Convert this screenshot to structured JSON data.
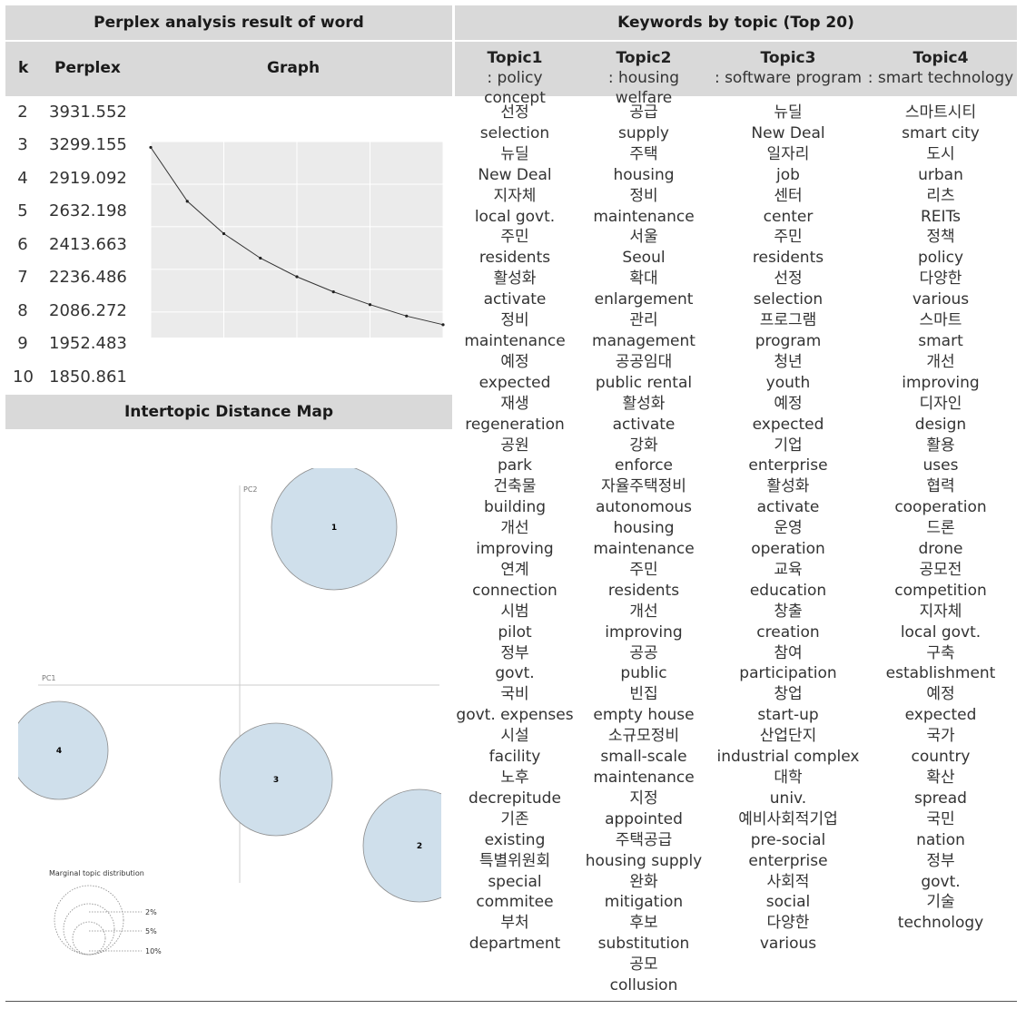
{
  "headers": {
    "perplex_title": "Perplex analysis result of word",
    "keywords_title": "Keywords by topic (Top 20)",
    "col_k": "k",
    "col_perplex": "Perplex",
    "col_graph": "Graph",
    "map_title": "Intertopic Distance Map"
  },
  "topics": [
    {
      "title": "Topic1",
      "subtitle": ": policy concept"
    },
    {
      "title": "Topic2",
      "subtitle": ": housing welfare"
    },
    {
      "title": "Topic3",
      "subtitle": ": software program"
    },
    {
      "title": "Topic4",
      "subtitle": ": smart technology"
    }
  ],
  "perplex_rows": [
    {
      "k": "2",
      "perplex": "3931.552"
    },
    {
      "k": "3",
      "perplex": "3299.155"
    },
    {
      "k": "4",
      "perplex": "2919.092"
    },
    {
      "k": "5",
      "perplex": "2632.198"
    },
    {
      "k": "6",
      "perplex": "2413.663"
    },
    {
      "k": "7",
      "perplex": "2236.486"
    },
    {
      "k": "8",
      "perplex": "2086.272"
    },
    {
      "k": "9",
      "perplex": "1952.483"
    },
    {
      "k": "10",
      "perplex": "1850.861"
    }
  ],
  "chart_data": {
    "type": "line",
    "x": [
      2,
      3,
      4,
      5,
      6,
      7,
      8,
      9,
      10
    ],
    "y": [
      3931.552,
      3299.155,
      2919.092,
      2632.198,
      2413.663,
      2236.486,
      2086.272,
      1952.483,
      1850.861
    ],
    "xlim": [
      2,
      10
    ],
    "ylim": [
      1700,
      4000
    ],
    "grid": true,
    "title": "",
    "xlabel": "",
    "ylabel": ""
  },
  "intertopic_map": {
    "axis_x_label": "PC1",
    "axis_y_label": "PC2",
    "circles": [
      {
        "label": "1"
      },
      {
        "label": "2"
      },
      {
        "label": "3"
      },
      {
        "label": "4"
      }
    ],
    "legend_title": "Marginal topic distribution",
    "legend_items": [
      "2%",
      "5%",
      "10%"
    ],
    "circle_color": "#cfdfeb"
  },
  "keywords": [
    [
      "선정",
      "selection",
      "뉴딜",
      "New Deal",
      "지자체",
      "local govt.",
      "주민",
      "residents",
      "활성화",
      "activate",
      "정비",
      "maintenance",
      "예정",
      "expected",
      "재생",
      "regeneration",
      "공원",
      "park",
      "건축물",
      "building",
      "개선",
      "improving",
      "연계",
      "connection",
      "시범",
      "pilot",
      "정부",
      "govt.",
      "국비",
      "govt. expenses",
      "시설",
      "facility",
      "노후",
      "decrepitude",
      "기존",
      "existing",
      "특별위원회",
      "special",
      "commitee",
      "부처",
      "department"
    ],
    [
      "공급",
      "supply",
      "주택",
      "housing",
      "정비",
      "maintenance",
      "서울",
      "Seoul",
      "확대",
      "enlargement",
      "관리",
      "management",
      "공공임대",
      "public rental",
      "활성화",
      "activate",
      "강화",
      "enforce",
      "자율주택정비",
      "autonomous",
      "housing",
      "maintenance",
      "주민",
      "residents",
      "개선",
      "improving",
      "공공",
      "public",
      "빈집",
      "empty house",
      "소규모정비",
      "small-scale",
      "maintenance",
      "지정",
      "appointed",
      "주택공급",
      "housing supply",
      "완화",
      "mitigation",
      "후보",
      "substitution",
      "공모",
      "collusion"
    ],
    [
      "뉴딜",
      "New Deal",
      "일자리",
      "job",
      "센터",
      "center",
      "주민",
      "residents",
      "선정",
      "selection",
      "프로그램",
      "program",
      "청년",
      "youth",
      "예정",
      "expected",
      "기업",
      "enterprise",
      "활성화",
      "activate",
      "운영",
      "operation",
      "교육",
      "education",
      "창출",
      "creation",
      "참여",
      "participation",
      "창업",
      "start-up",
      "산업단지",
      "industrial complex",
      "대학",
      "univ.",
      "예비사회적기업",
      "pre-social",
      "enterprise",
      "사회적",
      "social",
      "다양한",
      "various"
    ],
    [
      "스마트시티",
      "smart city",
      "도시",
      "urban",
      "리츠",
      "REITs",
      "정책",
      "policy",
      "다양한",
      "various",
      "스마트",
      "smart",
      "개선",
      "improving",
      "디자인",
      "design",
      "활용",
      "uses",
      "협력",
      "cooperation",
      "드론",
      "drone",
      "공모전",
      "competition",
      "지자체",
      "local govt.",
      "구축",
      "establishment",
      "예정",
      "expected",
      "국가",
      "country",
      "확산",
      "spread",
      "국민",
      "nation",
      "정부",
      "govt.",
      "기술",
      "technology"
    ]
  ]
}
